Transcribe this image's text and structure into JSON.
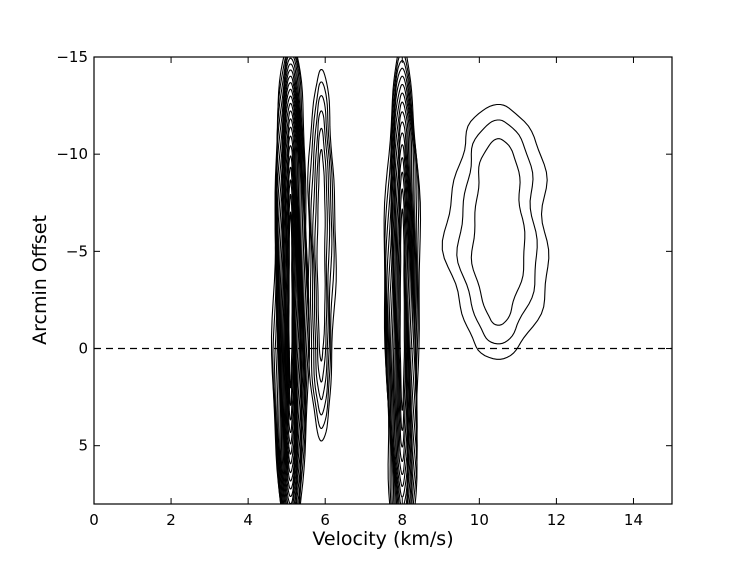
{
  "chart_data": {
    "type": "contour",
    "xlabel": "Velocity (km/s)",
    "ylabel": "Arcmin Offset",
    "xlim": [
      0,
      15
    ],
    "ylim": [
      8,
      -15
    ],
    "y_axis_inverted": true,
    "x_ticks": [
      {
        "value": 0,
        "label": "0"
      },
      {
        "value": 2,
        "label": "2"
      },
      {
        "value": 4,
        "label": "4"
      },
      {
        "value": 6,
        "label": "6"
      },
      {
        "value": 8,
        "label": "8"
      },
      {
        "value": 10,
        "label": "10"
      },
      {
        "value": 12,
        "label": "12"
      },
      {
        "value": 14,
        "label": "14"
      }
    ],
    "y_ticks": [
      {
        "value": -15,
        "label": "−15"
      },
      {
        "value": -10,
        "label": "−10"
      },
      {
        "value": -5,
        "label": "−5"
      },
      {
        "value": 0,
        "label": "0"
      },
      {
        "value": 5,
        "label": "5"
      }
    ],
    "reference_line": {
      "y": 0,
      "style": "dashed"
    },
    "grid": false,
    "components": [
      {
        "velocity_center": 5.1,
        "width": 0.45,
        "offset_center": -2.5,
        "offset_extent": [
          -15,
          8
        ],
        "levels": 22
      },
      {
        "velocity_center": 5.9,
        "width": 0.35,
        "offset_center": -4.8,
        "offset_extent": [
          -9,
          6
        ],
        "levels": 6
      },
      {
        "velocity_center": 8.0,
        "width": 0.45,
        "offset_center": -2.0,
        "offset_extent": [
          -15,
          8
        ],
        "levels": 16
      },
      {
        "velocity_center": 10.5,
        "width": 1.3,
        "offset_center": -6.0,
        "offset_extent": [
          -10,
          -1
        ],
        "levels": 3
      }
    ]
  }
}
